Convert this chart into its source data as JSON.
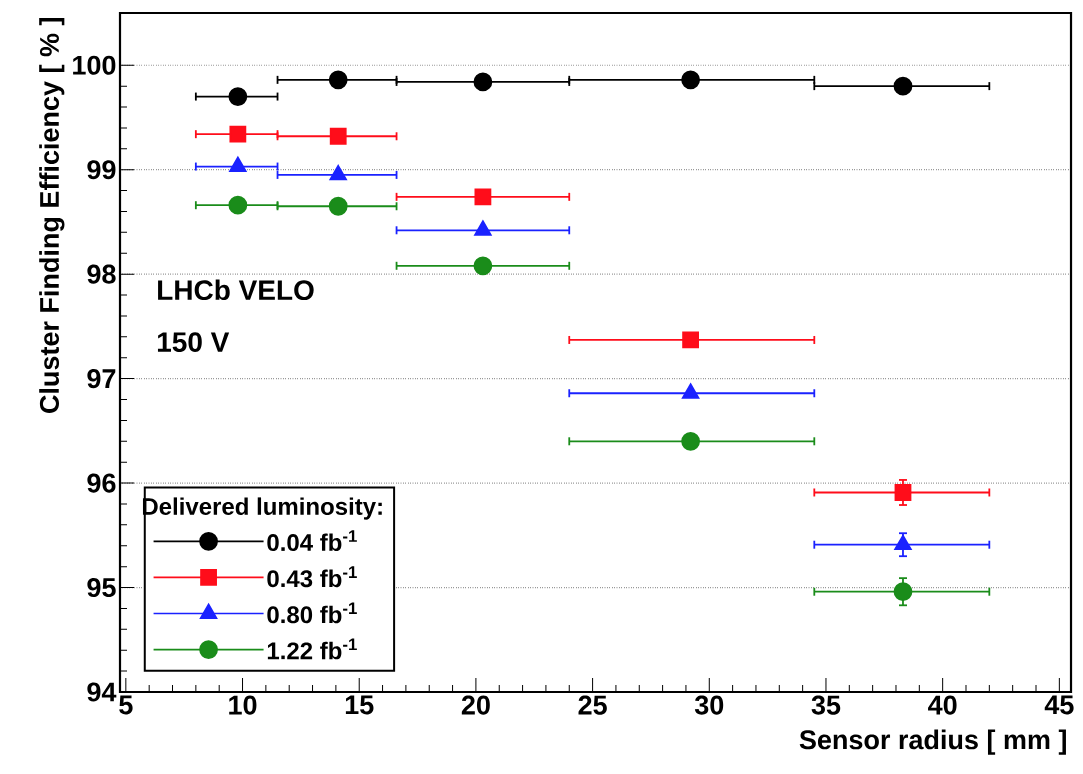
{
  "chart_data": {
    "type": "scatter",
    "xlabel": "Sensor radius  [ mm ]",
    "ylabel": "Cluster Finding Efficiency  [ % ]",
    "x": [
      9.8,
      14.1,
      20.3,
      29.2,
      38.3
    ],
    "series": [
      {
        "name": "0.04 fb$^{-1}$",
        "color": "#000000",
        "marker": "circle",
        "values": [
          99.7,
          99.86,
          99.84,
          99.86,
          99.8
        ],
        "errors": [
          0.04,
          null,
          null,
          null,
          null
        ],
        "xerrors": [
          [
            8,
            11.5
          ],
          [
            11.5,
            16.6
          ],
          [
            16.6,
            24
          ],
          [
            24,
            34.5
          ],
          [
            34.5,
            42
          ]
        ]
      },
      {
        "name": "0.43 fb$^{-1}$",
        "color": "#ff0d1a",
        "marker": "square",
        "values": [
          99.34,
          99.32,
          98.74,
          97.37,
          95.91
        ],
        "errors": [
          null,
          null,
          null,
          null,
          0.12
        ],
        "xerrors": [
          [
            8,
            11.5
          ],
          [
            11.5,
            16.6
          ],
          [
            16.6,
            24
          ],
          [
            24,
            34.5
          ],
          [
            34.5,
            42
          ]
        ]
      },
      {
        "name": "0.80 fb$^{-1}$",
        "color": "#1a22ff",
        "marker": "triangle",
        "values": [
          99.03,
          98.95,
          98.42,
          96.86,
          95.41
        ],
        "errors": [
          null,
          null,
          null,
          null,
          0.11
        ],
        "xerrors": [
          [
            8,
            11.5
          ],
          [
            11.5,
            16.6
          ],
          [
            16.6,
            24
          ],
          [
            24,
            34.5
          ],
          [
            34.5,
            42
          ]
        ]
      },
      {
        "name": "1.22 fb$^{-1}$",
        "color": "#1a8c1a",
        "marker": "circle",
        "values": [
          98.66,
          98.65,
          98.08,
          96.4,
          94.96
        ],
        "errors": [
          null,
          null,
          null,
          null,
          0.13
        ],
        "xerrors": [
          [
            8,
            11.5
          ],
          [
            11.5,
            16.6
          ],
          [
            16.6,
            24
          ],
          [
            24,
            34.5
          ],
          [
            34.5,
            42
          ]
        ]
      }
    ],
    "xlim": [
      4.75,
      45.5
    ],
    "ylim": [
      94,
      100.5
    ],
    "xticks": [
      5,
      10,
      15,
      20,
      25,
      30,
      35,
      40,
      45
    ],
    "yticks": [
      94,
      95,
      96,
      97,
      98,
      99,
      100
    ],
    "grid": "y",
    "legend": "bottom left",
    "legend_title": "Delivered luminosity:",
    "annotations": [
      "LHCb VELO",
      "150 V"
    ]
  }
}
